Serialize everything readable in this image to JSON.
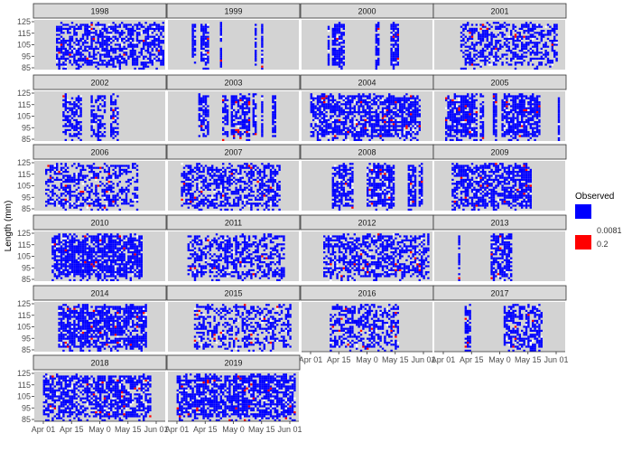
{
  "chart_data": {
    "type": "heatmap",
    "ylabel": "Length (mm)",
    "y_ticks": [
      "85",
      "95",
      "105",
      "115",
      "125"
    ],
    "ylim": [
      85,
      125
    ],
    "x_ticks": [
      "Apr 01",
      "Apr 15",
      "May 01",
      "May 15",
      "Jun 01"
    ],
    "x_tick_display": [
      "Apr 01",
      "Apr 15",
      "May 0",
      "May 15",
      "Jun 01"
    ],
    "xlim": [
      "Mar 25",
      "Jun 07"
    ],
    "facets": [
      "1998",
      "1999",
      "2000",
      "2001",
      "2002",
      "2003",
      "2004",
      "2005",
      "2006",
      "2007",
      "2008",
      "2009",
      "2010",
      "2011",
      "2012",
      "2013",
      "2014",
      "2015",
      "2016",
      "2017",
      "2018",
      "2019"
    ],
    "ncol": 4,
    "legend": {
      "title": "Observed",
      "entries": [
        {
          "label": "0.0081",
          "color": "#0000ff"
        },
        {
          "label": "0.2",
          "color": "#ff0000"
        }
      ],
      "placement": "right"
    },
    "colors": {
      "panel_background": "#d3d3d3",
      "strip_background": "#d9d9d9",
      "low": "#0000ff",
      "high": "#ff0000",
      "mid": "#ffffff"
    }
  }
}
